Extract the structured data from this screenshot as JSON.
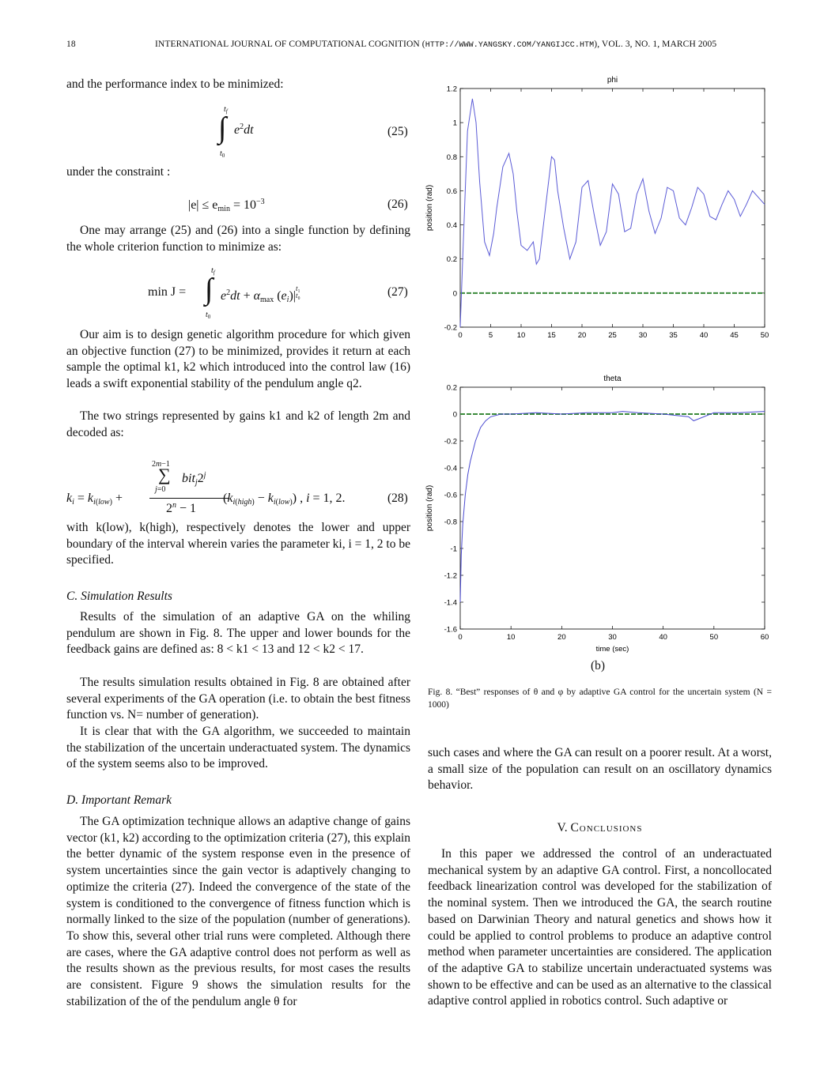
{
  "header": {
    "page_number": "18",
    "journal_prefix": "INTERNATIONAL JOURNAL OF COMPUTATIONAL COGNITION (",
    "url": "HTTP://WWW.YANGSKY.COM/YANGIJCC.HTM",
    "journal_suffix": "), VOL. 3, NO. 1, MARCH 2005"
  },
  "left_column": {
    "p_perf": "and the performance index to be minimized:",
    "eq25": "(25)",
    "p_constraint": "under the constraint :",
    "eq26_text": "|e| ≤ e",
    "eq26_sub": "min",
    "eq26_rhs": "= 10",
    "eq26_exp": "−3",
    "eq26": "(26)",
    "p_arrange": "One may arrange (25) and (26) into a single function by defining the whole criterion function to minimize as:",
    "eq27_lhs": "min  J =",
    "eq27": "(27)",
    "p_aim": "Our aim is to design genetic algorithm procedure for which given an objective function (27) to be minimized, provides it return at each sample the optimal k1, k2 which introduced into the control law (16) leads a swift exponential stability of the pendulum angle q2.",
    "p_strings": "The two strings represented by gains k1 and k2 of length 2m and decoded as:",
    "eq28": "(28)",
    "p_with": "with k(low), k(high), respectively denotes the lower and upper boundary of the interval wherein varies the parameter ki, i = 1, 2 to be specified.",
    "sec_c": "C.  Simulation Results",
    "p_sim1": "Results of the simulation of an adaptive GA on the whiling pendulum are shown in Fig. 8. The upper and lower bounds for the feedback gains are defined as: 8 < k1 < 13 and 12 < k2 < 17.",
    "p_sim2": "The results simulation results obtained in Fig. 8 are obtained after several experiments of the GA operation (i.e. to obtain the best fitness function vs. N= number of generation).",
    "p_sim3": "It is clear that with the GA algorithm, we succeeded to maintain the stabilization of the uncertain underactuated system. The dynamics of the system seems also to be improved.",
    "sec_d": "D.  Important Remark",
    "p_remark": "The GA optimization technique allows an adaptive change of gains vector (k1, k2) according to the optimization criteria (27), this explain the better dynamic of the system response even in the presence of system uncertainties since the gain vector is adaptively changing to optimize the criteria (27). Indeed the convergence of the state of the system is conditioned to the convergence of fitness function which is normally linked to the size of the population (number of generations). To show this, several other trial runs were completed. Although there are cases, where the GA adaptive control does not perform as well as the results shown as the previous results, for most cases the results are consistent. Figure 9 shows the simulation results for the stabilization of the of the pendulum angle θ for"
  },
  "right_column": {
    "sub_label": "(b)",
    "caption": "Fig. 8.   “Best” responses of θ and φ by adaptive GA control for the uncertain system (N = 1000)",
    "p_cont": "such cases and where the GA can result on a poorer result. At a worst, a small size of the population can result on an oscillatory dynamics behavior.",
    "sec_v_num": "V.",
    "sec_v_title": "Conclusions",
    "p_concl": "In this paper we addressed the control of an underactuated mechanical system by an adaptive GA control. First, a noncollocated feedback linearization control was developed for the stabilization of the nominal system. Then we introduced the GA, the search routine based on Darwinian Theory and natural genetics and shows how it could be applied to control problems to produce an adaptive control method when parameter uncertainties are considered. The application of the adaptive GA to stabilize uncertain underactuated systems was shown to be effective and can be used as an alternative to the classical adaptive control applied in robotics control. Such adaptive or"
  },
  "chart_data": [
    {
      "type": "line",
      "title": "phi",
      "ylabel": "position (rad)",
      "xlabel": "",
      "xlim": [
        0,
        50
      ],
      "ylim": [
        -0.2,
        1.2
      ],
      "xticks": [
        0,
        5,
        10,
        15,
        20,
        25,
        30,
        35,
        40,
        45,
        50
      ],
      "yticks": [
        -0.2,
        0,
        0.2,
        0.4,
        0.6,
        0.8,
        1,
        1.2
      ],
      "grid": false,
      "series": [
        {
          "color": "#5b5bd6",
          "x": [
            0,
            0.5,
            1.2,
            2,
            2.6,
            3.2,
            4,
            4.8,
            5.5,
            6,
            7,
            8,
            8.7,
            9.3,
            10,
            11,
            12,
            12.5,
            13,
            14,
            15,
            15.5,
            16,
            17,
            18,
            19,
            20,
            21,
            22,
            23,
            24,
            25,
            26,
            27,
            28,
            29,
            30,
            31,
            32,
            33,
            34,
            35,
            36,
            37,
            38,
            39,
            40,
            41,
            42,
            43,
            44,
            45,
            46,
            47,
            48,
            49,
            50
          ],
          "y": [
            -0.2,
            0.3,
            0.95,
            1.14,
            1.0,
            0.65,
            0.3,
            0.22,
            0.35,
            0.5,
            0.74,
            0.82,
            0.7,
            0.48,
            0.28,
            0.25,
            0.3,
            0.17,
            0.2,
            0.5,
            0.8,
            0.78,
            0.6,
            0.38,
            0.2,
            0.3,
            0.62,
            0.66,
            0.46,
            0.28,
            0.36,
            0.64,
            0.58,
            0.36,
            0.38,
            0.58,
            0.67,
            0.48,
            0.35,
            0.44,
            0.62,
            0.6,
            0.44,
            0.4,
            0.5,
            0.62,
            0.58,
            0.45,
            0.43,
            0.52,
            0.6,
            0.55,
            0.45,
            0.52,
            0.6,
            0.56,
            0.52
          ]
        },
        {
          "color": "#3a8a3a",
          "x": [
            0,
            50
          ],
          "y": [
            0,
            0
          ]
        }
      ]
    },
    {
      "type": "line",
      "title": "theta",
      "ylabel": "position (rad)",
      "xlabel": "time (sec)",
      "xlim": [
        0,
        60
      ],
      "ylim": [
        -1.6,
        0.2
      ],
      "xticks": [
        0,
        10,
        20,
        30,
        40,
        50,
        60
      ],
      "yticks": [
        -1.6,
        -1.4,
        -1.2,
        -1,
        -0.8,
        -0.6,
        -0.4,
        -0.2,
        0,
        0.2
      ],
      "grid": false,
      "series": [
        {
          "color": "#4a4ad0",
          "x": [
            0,
            0.2,
            0.5,
            1,
            1.5,
            2,
            3,
            4,
            5,
            6,
            8,
            10,
            15,
            20,
            25,
            30,
            32,
            35,
            40,
            45,
            46,
            50,
            55,
            60
          ],
          "y": [
            -1.4,
            -1.05,
            -0.82,
            -0.6,
            -0.45,
            -0.35,
            -0.2,
            -0.1,
            -0.05,
            -0.02,
            0.0,
            0.0,
            0.01,
            0.0,
            0.01,
            0.01,
            0.02,
            0.01,
            0.0,
            -0.02,
            -0.05,
            0.01,
            0.01,
            0.02
          ]
        },
        {
          "color": "#3a8a3a",
          "x": [
            0,
            60
          ],
          "y": [
            0,
            0
          ]
        }
      ]
    }
  ]
}
